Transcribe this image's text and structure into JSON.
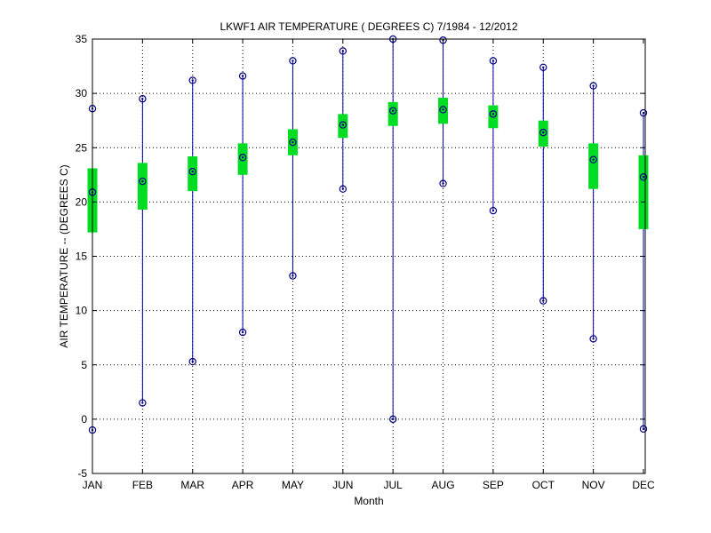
{
  "chart_data": {
    "type": "box",
    "title": "LKWF1  AIR TEMPERATURE ( DEGREES C) 7/1984 - 12/2012",
    "xlabel": "Month",
    "ylabel": "AIR TEMPERATURE -- (DEGREES C)",
    "categories": [
      "JAN",
      "FEB",
      "MAR",
      "APR",
      "MAY",
      "JUN",
      "JUL",
      "AUG",
      "SEP",
      "OCT",
      "NOV",
      "DEC"
    ],
    "ylim": [
      -5,
      35
    ],
    "yticks": [
      -5,
      0,
      5,
      10,
      15,
      20,
      25,
      30,
      35
    ],
    "grid": true,
    "series": [
      {
        "min": [
          -1.0,
          1.5,
          5.3,
          8.0,
          13.2,
          21.2,
          0.0,
          21.7,
          19.2,
          10.9,
          7.4,
          -0.9
        ],
        "q1": [
          17.2,
          19.3,
          21.0,
          22.5,
          24.3,
          25.9,
          27.0,
          27.2,
          26.8,
          25.1,
          21.2,
          17.5
        ],
        "mean": [
          20.9,
          21.9,
          22.8,
          24.1,
          25.5,
          27.1,
          28.4,
          28.5,
          28.1,
          26.4,
          23.9,
          22.3
        ],
        "q3": [
          23.1,
          23.6,
          24.2,
          25.4,
          26.7,
          28.1,
          29.2,
          29.6,
          28.9,
          27.5,
          25.4,
          24.3
        ],
        "max": [
          28.6,
          29.5,
          31.2,
          31.6,
          33.0,
          33.9,
          35.0,
          34.9,
          33.0,
          32.4,
          30.7,
          28.2
        ]
      }
    ],
    "colors": {
      "whisker": "#0000aa",
      "box": "#00dd22",
      "marker": "#000080",
      "grid": "#000000"
    }
  }
}
